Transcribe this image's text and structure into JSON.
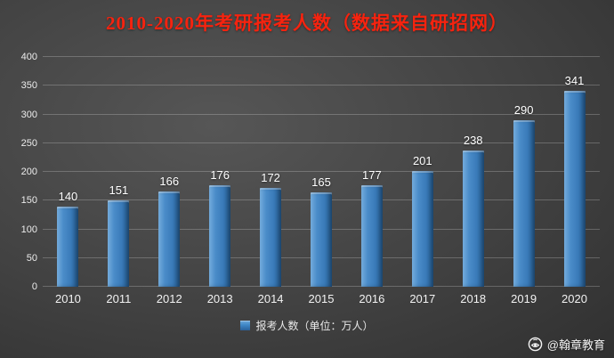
{
  "title": "2010-2020年考研报考人数（数据来自研招网）",
  "chart_data": {
    "type": "bar",
    "title": "2010-2020年考研报考人数（数据来自研招网）",
    "categories": [
      "2010",
      "2011",
      "2012",
      "2013",
      "2014",
      "2015",
      "2016",
      "2017",
      "2018",
      "2019",
      "2020"
    ],
    "values": [
      140,
      151,
      166,
      176,
      172,
      165,
      177,
      201,
      238,
      290,
      341
    ],
    "xlabel": "",
    "ylabel": "",
    "ylim": [
      0,
      400
    ],
    "ytick_step": 50,
    "yticks": [
      0,
      50,
      100,
      150,
      200,
      250,
      300,
      350,
      400
    ],
    "grid": true,
    "bar_color": "#3f87c7",
    "legend": [
      "报考人数（单位：万人）"
    ],
    "legend_position": "bottom",
    "value_labels_shown": true
  },
  "legend": {
    "label": "报考人数（单位：万人）"
  },
  "watermark": {
    "text": "@翰章教育",
    "icon": "weibo-icon"
  },
  "colors": {
    "title_red": "#f6230f",
    "bar_blue": "#3f87c7",
    "background_gray": "#424242",
    "text_white": "#ffffff"
  }
}
